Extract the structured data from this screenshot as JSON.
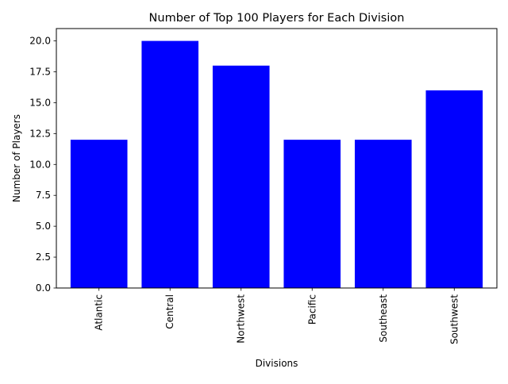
{
  "chart_data": {
    "type": "bar",
    "title": "Number of Top 100 Players for Each Division",
    "xlabel": "Divisions",
    "ylabel": "Number of Players",
    "categories": [
      "Atlantic",
      "Central",
      "Northwest",
      "Pacific",
      "Southeast",
      "Southwest"
    ],
    "values": [
      12,
      20,
      18,
      12,
      12,
      16
    ],
    "ylim": [
      0,
      21
    ],
    "yticks": [
      "0.0",
      "2.5",
      "5.0",
      "7.5",
      "10.0",
      "12.5",
      "15.0",
      "17.5",
      "20.0"
    ],
    "bar_color": "#0000ff",
    "grid": false,
    "x_tick_rotation": "vertical"
  }
}
